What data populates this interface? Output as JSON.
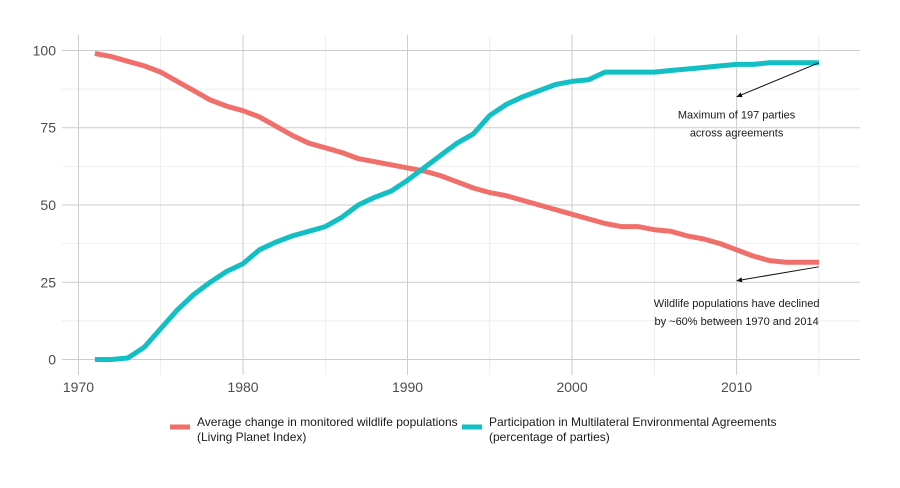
{
  "chart_data": {
    "type": "line",
    "xlim": [
      1969,
      2017.5
    ],
    "ylim": [
      -5,
      105
    ],
    "x_ticks": [
      1970,
      1980,
      1990,
      2000,
      2010
    ],
    "y_ticks": [
      0,
      25,
      50,
      75,
      100
    ],
    "grid": true,
    "legend_position": "bottom",
    "series": [
      {
        "name": "Average change in monitored wildlife populations",
        "name_line2": "(Living Planet Index)",
        "color": "#f06f6a",
        "x": [
          1971,
          1972,
          1973,
          1974,
          1975,
          1976,
          1977,
          1978,
          1979,
          1980,
          1981,
          1982,
          1983,
          1984,
          1985,
          1986,
          1987,
          1988,
          1989,
          1990,
          1991,
          1992,
          1993,
          1994,
          1995,
          1996,
          1997,
          1998,
          1999,
          2000,
          2001,
          2002,
          2003,
          2004,
          2005,
          2006,
          2007,
          2008,
          2009,
          2010,
          2011,
          2012,
          2013,
          2014,
          2015
        ],
        "values": [
          99,
          98,
          96.5,
          95,
          93,
          90,
          87,
          84,
          82,
          80.5,
          78.5,
          75.5,
          72.5,
          70,
          68.5,
          67,
          65,
          64,
          63,
          62,
          61,
          59.5,
          57.5,
          55.5,
          54,
          53,
          51.5,
          50,
          48.5,
          47,
          45.5,
          44,
          43,
          43,
          42,
          41.5,
          40,
          39,
          37.5,
          35.5,
          33.5,
          32,
          31.5,
          31.5,
          31.5
        ]
      },
      {
        "name": "Participation in Multilateral Environmental Agreements",
        "name_line2": "(percentage of parties)",
        "color": "#11bfc4",
        "x": [
          1971,
          1972,
          1973,
          1974,
          1975,
          1976,
          1977,
          1978,
          1979,
          1980,
          1981,
          1982,
          1983,
          1984,
          1985,
          1986,
          1987,
          1988,
          1989,
          1990,
          1991,
          1992,
          1993,
          1994,
          1995,
          1996,
          1997,
          1998,
          1999,
          2000,
          2001,
          2002,
          2003,
          2004,
          2005,
          2006,
          2007,
          2008,
          2009,
          2010,
          2011,
          2012,
          2013,
          2014,
          2015
        ],
        "values": [
          0,
          0,
          0.5,
          4,
          10,
          16,
          21,
          25,
          28.5,
          31,
          35.5,
          38,
          40,
          41.5,
          43,
          46,
          50,
          52.5,
          54.5,
          58,
          62,
          66,
          70,
          73,
          79,
          82.5,
          85,
          87,
          89,
          90,
          90.5,
          93,
          93,
          93,
          93,
          93.5,
          94,
          94.5,
          95,
          95.5,
          95.5,
          96,
          96,
          96,
          96
        ]
      }
    ],
    "annotations": [
      {
        "id": "parties",
        "line1": "Maximum of 197 parties",
        "line2": "across agreements",
        "arrow_from": [
          2015,
          96
        ],
        "arrow_to": [
          2010,
          85
        ],
        "text_at": [
          2010,
          78
        ]
      },
      {
        "id": "decline",
        "line1": "Wildlife populations have declined",
        "line2": "by ~60% between 1970 and 2014",
        "arrow_from": [
          2015,
          30
        ],
        "arrow_to": [
          2010,
          25.5
        ],
        "text_at": [
          2010,
          17
        ]
      }
    ]
  }
}
